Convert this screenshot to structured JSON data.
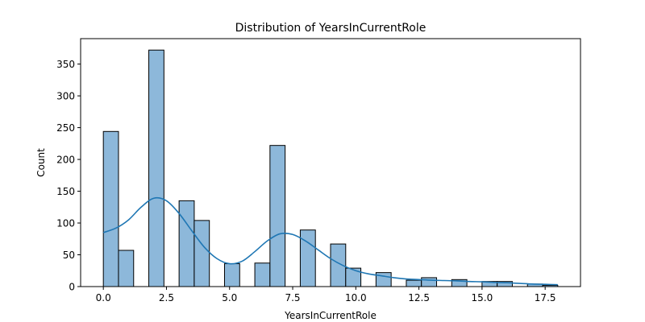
{
  "chart_data": {
    "type": "bar",
    "title": "Distribution of YearsInCurrentRole",
    "xlabel": "YearsInCurrentRole",
    "ylabel": "Count",
    "xlim": [
      -0.9,
      18.9
    ],
    "ylim": [
      0,
      390
    ],
    "x_ticks": [
      0.0,
      2.5,
      5.0,
      7.5,
      10.0,
      12.5,
      15.0,
      17.5
    ],
    "x_tick_labels": [
      "0.0",
      "2.5",
      "5.0",
      "7.5",
      "10.0",
      "12.5",
      "15.0",
      "17.5"
    ],
    "y_ticks": [
      0,
      50,
      100,
      150,
      200,
      250,
      300,
      350
    ],
    "y_tick_labels": [
      "0",
      "50",
      "100",
      "150",
      "200",
      "250",
      "300",
      "350"
    ],
    "bin_width": 0.6,
    "bins": [
      {
        "x0": 0.0,
        "count": 244
      },
      {
        "x0": 0.6,
        "count": 57
      },
      {
        "x0": 1.8,
        "count": 372
      },
      {
        "x0": 3.0,
        "count": 135
      },
      {
        "x0": 3.6,
        "count": 104
      },
      {
        "x0": 4.8,
        "count": 36
      },
      {
        "x0": 6.0,
        "count": 37
      },
      {
        "x0": 6.6,
        "count": 222
      },
      {
        "x0": 7.8,
        "count": 89
      },
      {
        "x0": 9.0,
        "count": 67
      },
      {
        "x0": 9.6,
        "count": 29
      },
      {
        "x0": 10.8,
        "count": 22
      },
      {
        "x0": 12.0,
        "count": 10
      },
      {
        "x0": 12.6,
        "count": 14
      },
      {
        "x0": 13.8,
        "count": 11
      },
      {
        "x0": 15.0,
        "count": 8
      },
      {
        "x0": 15.6,
        "count": 8
      },
      {
        "x0": 16.8,
        "count": 4
      },
      {
        "x0": 17.4,
        "count": 2
      }
    ],
    "kde": {
      "x": [
        0,
        0.5,
        1.0,
        1.5,
        2.0,
        2.5,
        3.0,
        3.5,
        4.0,
        4.5,
        5.0,
        5.5,
        6.0,
        6.5,
        7.0,
        7.5,
        8.0,
        8.5,
        9.0,
        9.5,
        10.0,
        10.5,
        11.0,
        11.5,
        12.0,
        12.5,
        13.0,
        13.5,
        14.0,
        14.5,
        15.0,
        15.5,
        16.0,
        16.5,
        17.0,
        17.5,
        18.0
      ],
      "y": [
        85,
        92,
        105,
        125,
        139,
        135,
        115,
        88,
        62,
        44,
        36,
        40,
        55,
        72,
        83,
        82,
        72,
        58,
        44,
        33,
        25,
        20,
        17,
        14,
        12,
        11,
        10,
        9.5,
        9,
        8,
        7.5,
        6.5,
        6,
        5,
        4,
        3.5,
        3
      ]
    },
    "colors": {
      "bar_fill": "#8db8da",
      "bar_edge": "#000000",
      "kde_line": "#1f77b4"
    },
    "grid": false,
    "legend": "none"
  }
}
